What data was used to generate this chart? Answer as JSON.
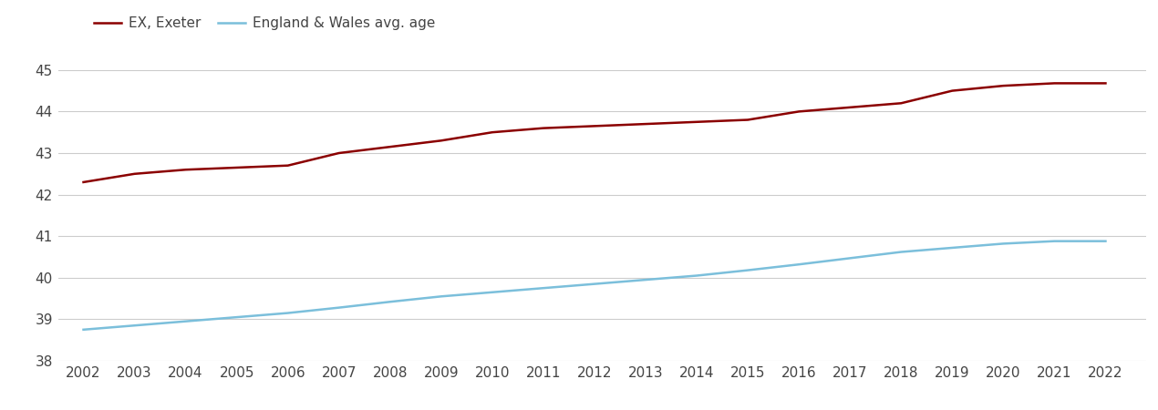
{
  "years": [
    2002,
    2003,
    2004,
    2005,
    2006,
    2007,
    2008,
    2009,
    2010,
    2011,
    2012,
    2013,
    2014,
    2015,
    2016,
    2017,
    2018,
    2019,
    2020,
    2021,
    2022
  ],
  "exeter": [
    42.3,
    42.5,
    42.6,
    42.65,
    42.7,
    43.0,
    43.15,
    43.3,
    43.5,
    43.6,
    43.65,
    43.7,
    43.75,
    43.8,
    44.0,
    44.1,
    44.2,
    44.5,
    44.62,
    44.68,
    44.68
  ],
  "england_wales": [
    38.75,
    38.85,
    38.95,
    39.05,
    39.15,
    39.28,
    39.42,
    39.55,
    39.65,
    39.75,
    39.85,
    39.95,
    40.05,
    40.18,
    40.32,
    40.47,
    40.62,
    40.72,
    40.82,
    40.88,
    40.88
  ],
  "exeter_color": "#8b0000",
  "england_wales_color": "#7bbfdb",
  "exeter_label": "EX, Exeter",
  "england_wales_label": "England & Wales avg. age",
  "ylim": [
    38,
    45.5
  ],
  "yticks": [
    38,
    39,
    40,
    41,
    42,
    43,
    44,
    45
  ],
  "background_color": "#ffffff",
  "grid_color": "#cccccc",
  "line_width": 1.8,
  "legend_fontsize": 11,
  "tick_fontsize": 11
}
